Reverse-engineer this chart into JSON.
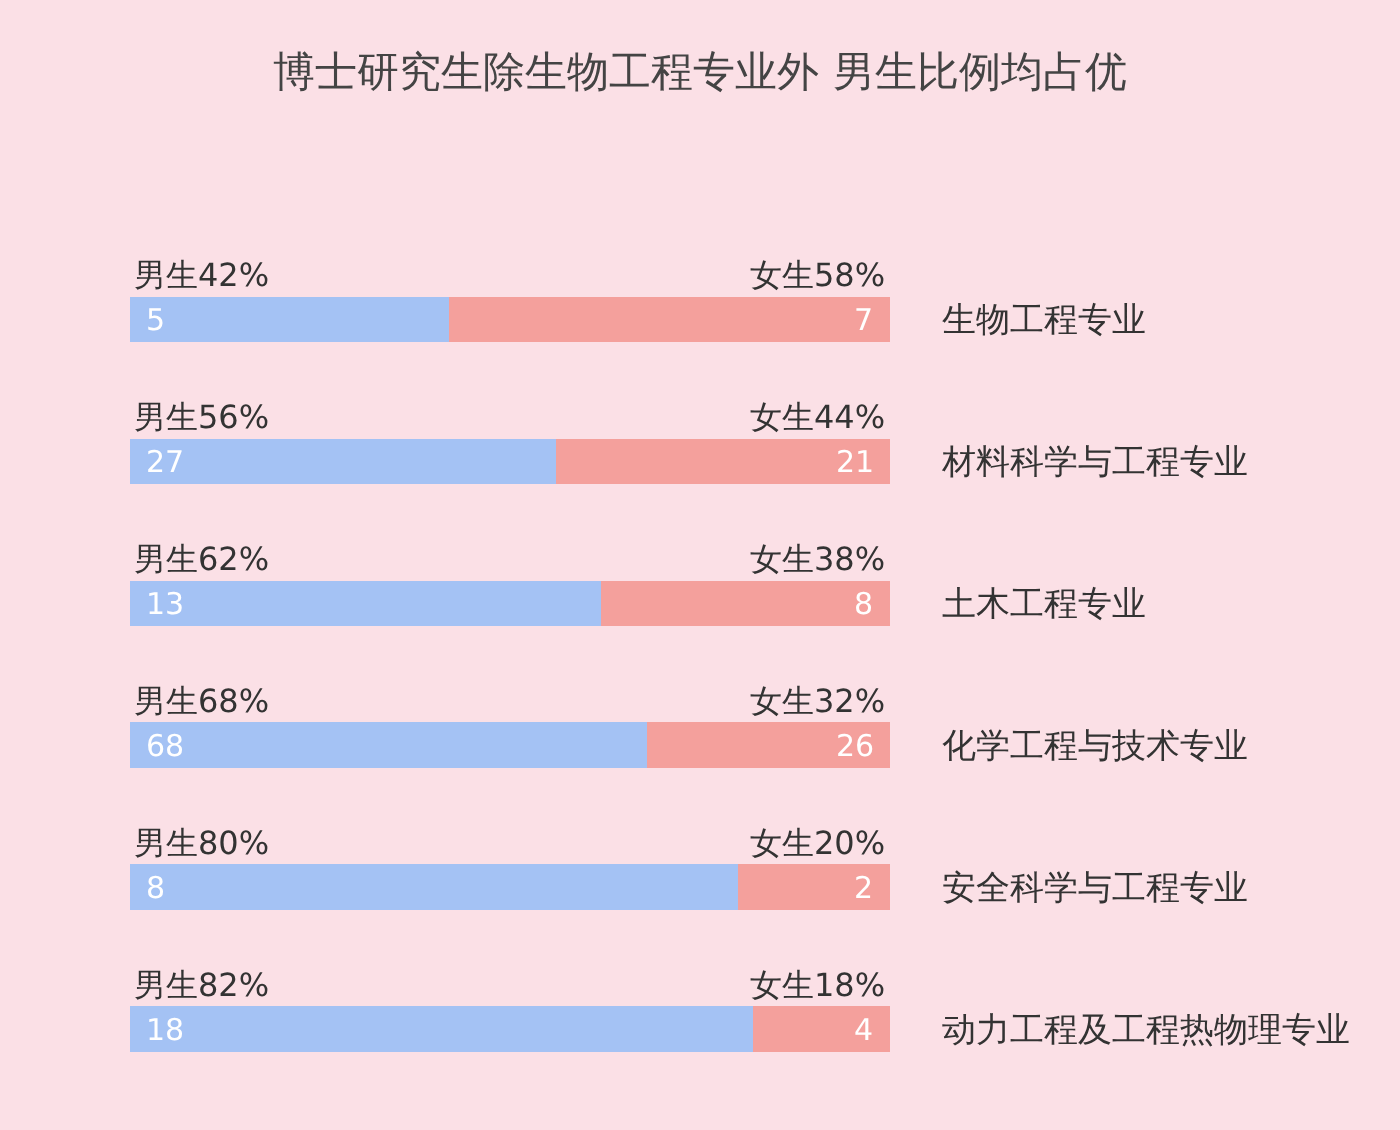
{
  "chart_data": {
    "type": "bar",
    "orientation": "horizontal",
    "stacked": true,
    "title": "博士研究生除生物工程专业外 男生比例均占优",
    "categories": [
      "生物工程专业",
      "材料科学与工程专业",
      "土木工程专业",
      "化学工程与技术专业",
      "安全科学与工程专业",
      "动力工程及工程热物理专业"
    ],
    "xlim": [
      0,
      100
    ],
    "tick_labels": "y",
    "grid": false,
    "series": [
      {
        "color": "#a4c2f4",
        "values": [
          42,
          56,
          62,
          68,
          80,
          82
        ],
        "value_labels": [
          "男生42%",
          "男生56%",
          "男生62%",
          "男生68%",
          "男生80%",
          "男生82%"
        ]
      },
      {
        "color": "#f4a09c",
        "values": [
          58,
          44,
          38,
          32,
          20,
          18
        ],
        "value_labels": [
          "女生58%",
          "女生44%",
          "女生38%",
          "女生32%",
          "女生20%",
          "女生18%"
        ]
      }
    ],
    "annotations": [
      "5",
      "7",
      "27",
      "21",
      "13",
      "8",
      "68",
      "26",
      "8",
      "2",
      "18",
      "4"
    ]
  }
}
